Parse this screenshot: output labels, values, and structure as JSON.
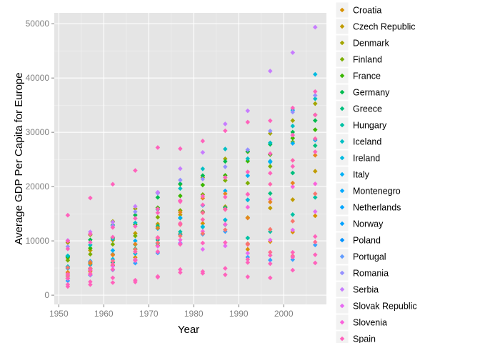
{
  "chart_data": {
    "type": "scatter",
    "xlabel": "Year",
    "ylabel": "Average GDP Per Capita for Europe",
    "xlim": [
      1949,
      2009.5
    ],
    "ylim": [
      -1700,
      52000
    ],
    "x_ticks": [
      1950,
      1960,
      1970,
      1980,
      1990,
      2000
    ],
    "y_ticks": [
      0,
      10000,
      20000,
      30000,
      40000,
      50000
    ],
    "x_tick_labels": [
      "1950",
      "1960",
      "1970",
      "1980",
      "1990",
      "2000"
    ],
    "y_tick_labels": [
      "0",
      "10000",
      "20000",
      "30000",
      "40000",
      "50000"
    ],
    "grid": true,
    "legend_position": "right",
    "years": [
      1952,
      1957,
      1962,
      1967,
      1972,
      1977,
      1982,
      1987,
      1992,
      1997,
      2002,
      2007
    ],
    "series": [
      {
        "name": "Croatia",
        "color": "#D89000",
        "values": [
          3119,
          4338,
          5478,
          6960,
          9164,
          11305,
          13222,
          13823,
          8447,
          9876,
          11628,
          14619
        ]
      },
      {
        "name": "Czech Republic",
        "color": "#C09B00",
        "values": [
          6876,
          8256,
          10137,
          11399,
          13108,
          14800,
          15377,
          16310,
          14297,
          16049,
          17596,
          22833
        ]
      },
      {
        "name": "Denmark",
        "color": "#A3A500",
        "values": [
          9692,
          11100,
          13583,
          15937,
          18866,
          20423,
          21688,
          25116,
          26407,
          29804,
          32166,
          35278
        ]
      },
      {
        "name": "Finland",
        "color": "#7CAE00",
        "values": [
          6425,
          7545,
          9371,
          10922,
          14359,
          15605,
          18533,
          21141,
          20647,
          23724,
          28205,
          33207
        ]
      },
      {
        "name": "France",
        "color": "#39B600",
        "values": [
          7030,
          8663,
          10560,
          13000,
          16107,
          18293,
          20294,
          22066,
          24704,
          25890,
          28926,
          30470
        ]
      },
      {
        "name": "Germany",
        "color": "#00BB4E",
        "values": [
          7144,
          10188,
          12902,
          14746,
          18016,
          20513,
          22032,
          24639,
          26505,
          27789,
          30036,
          32170
        ]
      },
      {
        "name": "Greece",
        "color": "#00BF7D",
        "values": [
          3531,
          4916,
          6017,
          8513,
          12725,
          14196,
          15268,
          16121,
          17541,
          18748,
          22514,
          27538
        ]
      },
      {
        "name": "Hungary",
        "color": "#00C1A3",
        "values": [
          5264,
          6040,
          7550,
          9326,
          10168,
          11675,
          12546,
          12986,
          10536,
          11712,
          14843,
          18009
        ]
      },
      {
        "name": "Iceland",
        "color": "#00BFC4",
        "values": [
          7268,
          9244,
          10350,
          13320,
          15798,
          19655,
          23270,
          26923,
          25144,
          28061,
          31163,
          36181
        ]
      },
      {
        "name": "Ireland",
        "color": "#00BAE0",
        "values": [
          5211,
          5599,
          6632,
          7656,
          9531,
          11151,
          12618,
          13873,
          17559,
          24522,
          34077,
          40676
        ]
      },
      {
        "name": "Italy",
        "color": "#00B0F6",
        "values": [
          4931,
          6249,
          8244,
          10022,
          12269,
          14256,
          16537,
          19208,
          22013,
          24675,
          27968,
          28570
        ]
      },
      {
        "name": "Montenegro",
        "color": "#35A2FF",
        "values": [
          2648,
          3682,
          4650,
          5907,
          7779,
          9595,
          11223,
          11733,
          7003,
          6465,
          6558,
          9254
        ]
      },
      {
        "name": "Netherlands",
        "color": "#9590FF",
        "values": [
          8942,
          11276,
          12791,
          15363,
          18795,
          21209,
          21400,
          23651,
          26791,
          30246,
          33725,
          36798
        ]
      },
      {
        "name": "Norway",
        "color": "#C77CFF",
        "values": [
          10095,
          11654,
          13450,
          16362,
          18965,
          23311,
          26299,
          31541,
          33966,
          41283,
          44684,
          49357
        ]
      },
      {
        "name": "Poland",
        "color": "#E76BF3",
        "values": [
          4029,
          4734,
          5339,
          6557,
          8006,
          9508,
          8452,
          9082,
          7739,
          10160,
          12002,
          15390
        ]
      },
      {
        "name": "Portugal",
        "color": "#FA62DB",
        "values": [
          3068,
          3774,
          4728,
          6362,
          9022,
          10172,
          11754,
          13039,
          16207,
          17641,
          19971,
          20510
        ]
      },
      {
        "name": "Romania",
        "color": "#FF62BC",
        "values": [
          3144,
          3943,
          4735,
          6471,
          8011,
          9356,
          9605,
          9697,
          6598,
          7346,
          7886,
          10808
        ]
      },
      {
        "name": "Serbia",
        "color": "#FF6C91",
        "values": [
          3581,
          4981,
          6289,
          7991,
          10523,
          12980,
          15182,
          15871,
          9325,
          7915,
          7236,
          9787
        ]
      },
      {
        "name": "Slovak Republic",
        "color": "#F8766D",
        "values": [
          5074,
          6094,
          7481,
          8412,
          9674,
          10923,
          11348,
          12038,
          9498,
          12126,
          13638,
          18678
        ]
      },
      {
        "name": "Slovenia",
        "color": "#E7851E",
        "values": [
          4215,
          5862,
          7402,
          9405,
          12383,
          15277,
          17866,
          18678,
          14214,
          17161,
          20660,
          25768
        ]
      },
      {
        "name": "Spain",
        "color": "#FF65AE",
        "values": [
          3834,
          4564,
          5694,
          7993,
          10639,
          13236,
          13926,
          15765,
          18603,
          20445,
          24835,
          28821
        ]
      }
    ],
    "extra_points": {
      "color": "#FF62BC",
      "points": [
        [
          1952,
          14734
        ],
        [
          1957,
          17909
        ],
        [
          1962,
          20431
        ],
        [
          1967,
          22966
        ],
        [
          1972,
          27195
        ],
        [
          1977,
          26982
        ],
        [
          1982,
          28397
        ],
        [
          1987,
          30282
        ],
        [
          1992,
          31871
        ],
        [
          1997,
          32135
        ],
        [
          2002,
          34481
        ],
        [
          2007,
          37506
        ],
        [
          1952,
          9979
        ],
        [
          1957,
          11283
        ],
        [
          1962,
          12477
        ],
        [
          1967,
          14142
        ],
        [
          1972,
          15895
        ],
        [
          1977,
          17429
        ],
        [
          1982,
          18232
        ],
        [
          1987,
          21665
        ],
        [
          1992,
          22705
        ],
        [
          1997,
          26074
        ],
        [
          2002,
          29479
        ],
        [
          2007,
          33203
        ],
        [
          1952,
          1601
        ],
        [
          1957,
          1942
        ],
        [
          1962,
          2313
        ],
        [
          1967,
          2760
        ],
        [
          1972,
          3313
        ],
        [
          1977,
          4182
        ],
        [
          1982,
          4035
        ],
        [
          1987,
          3760
        ],
        [
          1992,
          3380
        ],
        [
          1997,
          3193
        ],
        [
          2002,
          4604
        ],
        [
          2007,
          5937
        ],
        [
          1952,
          8528
        ],
        [
          1957,
          9735
        ],
        [
          1962,
          10695
        ],
        [
          1967,
          12683
        ],
        [
          1972,
          15181
        ],
        [
          1977,
          17230
        ],
        [
          1982,
          16630
        ],
        [
          1987,
          18080
        ],
        [
          1992,
          18575
        ],
        [
          1997,
          22470
        ],
        [
          2002,
          23724
        ],
        [
          2007,
          26400
        ],
        [
          1952,
          1970
        ],
        [
          1957,
          2470
        ],
        [
          1962,
          3200
        ],
        [
          1967,
          2425
        ],
        [
          1972,
          3450
        ],
        [
          1977,
          4720
        ],
        [
          1982,
          4350
        ],
        [
          1987,
          4940
        ],
        [
          1992,
          6020
        ],
        [
          1997,
          5810
        ],
        [
          2002,
          7010
        ],
        [
          2007,
          7440
        ]
      ]
    }
  },
  "legend": {
    "items": [
      {
        "label": "Croatia",
        "color": "#D89000"
      },
      {
        "label": "Czech Republic",
        "color": "#C09B00"
      },
      {
        "label": "Denmark",
        "color": "#A3A500"
      },
      {
        "label": "Finland",
        "color": "#7CAE00"
      },
      {
        "label": "France",
        "color": "#39B600"
      },
      {
        "label": "Germany",
        "color": "#00BB4E"
      },
      {
        "label": "Greece",
        "color": "#00BF7D"
      },
      {
        "label": "Hungary",
        "color": "#00C1A3"
      },
      {
        "label": "Iceland",
        "color": "#00BFC4"
      },
      {
        "label": "Ireland",
        "color": "#00BAE0"
      },
      {
        "label": "Italy",
        "color": "#00B0F6"
      },
      {
        "label": "Montenegro",
        "color": "#00A9FF"
      },
      {
        "label": "Netherlands",
        "color": "#00A5FF"
      },
      {
        "label": "Norway",
        "color": "#00A1FF"
      },
      {
        "label": "Poland",
        "color": "#0092FF"
      },
      {
        "label": "Portugal",
        "color": "#619CFF"
      },
      {
        "label": "Romania",
        "color": "#9590FF"
      },
      {
        "label": "Serbia",
        "color": "#C77CFF"
      },
      {
        "label": "Slovak Republic",
        "color": "#E76BF3"
      },
      {
        "label": "Slovenia",
        "color": "#FA62DB"
      },
      {
        "label": "Spain",
        "color": "#FF62BC"
      }
    ]
  },
  "colors": {
    "panel_background": "#E5E5E5",
    "grid_major": "#FFFFFF",
    "grid_minor": "#F2F2F2",
    "tick_text": "#7F7F7F",
    "legend_key_background": "#F2F2F2"
  }
}
